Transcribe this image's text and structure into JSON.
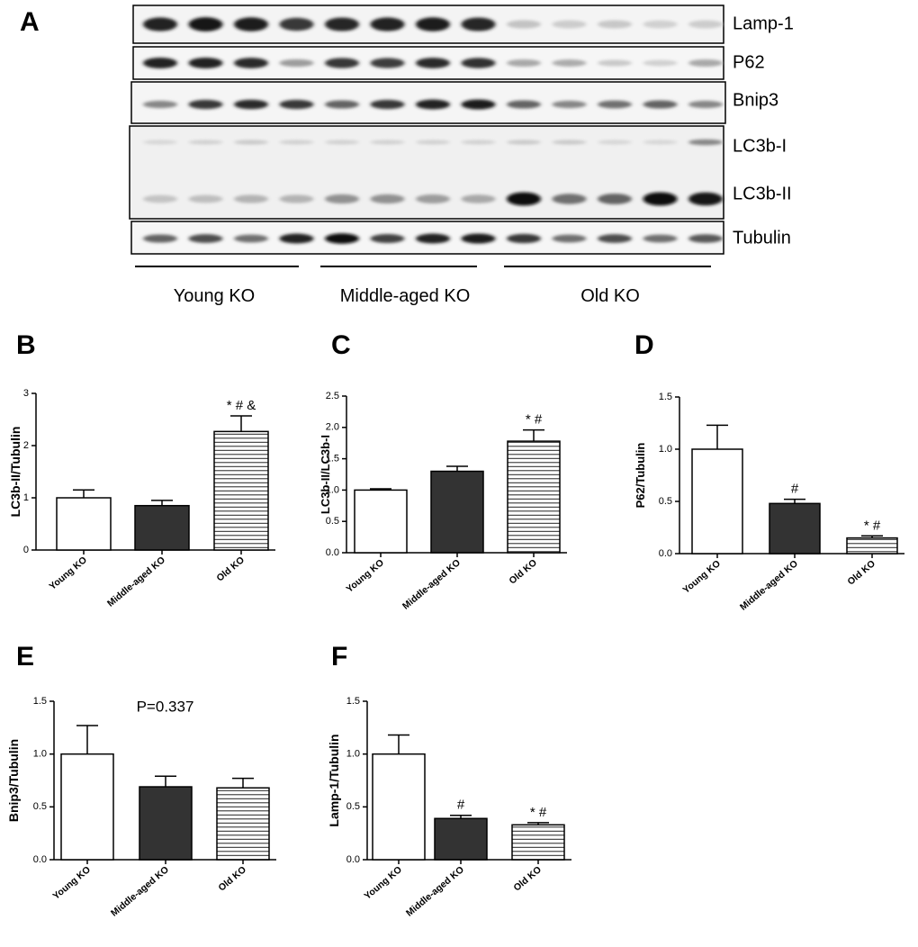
{
  "panel_labels": {
    "A": "A",
    "B": "B",
    "C": "C",
    "D": "D",
    "E": "E",
    "F": "F"
  },
  "blot": {
    "rows": [
      {
        "label": "Lamp-1",
        "intensity": [
          0.9,
          0.95,
          0.92,
          0.8,
          0.88,
          0.9,
          0.92,
          0.88,
          0.18,
          0.14,
          0.16,
          0.12,
          0.14
        ]
      },
      {
        "label": "P62",
        "intensity": [
          0.9,
          0.9,
          0.85,
          0.35,
          0.8,
          0.78,
          0.85,
          0.82,
          0.3,
          0.28,
          0.15,
          0.12,
          0.3
        ]
      },
      {
        "label": "Bnip3",
        "intensity": [
          0.45,
          0.8,
          0.85,
          0.8,
          0.6,
          0.8,
          0.9,
          0.92,
          0.6,
          0.45,
          0.55,
          0.6,
          0.45
        ]
      },
      {
        "label": "LC3b-I",
        "intensity": [
          0.1,
          0.12,
          0.15,
          0.12,
          0.12,
          0.12,
          0.12,
          0.12,
          0.15,
          0.15,
          0.1,
          0.1,
          0.45
        ]
      },
      {
        "label": "LC3b-II",
        "intensity": [
          0.18,
          0.2,
          0.25,
          0.25,
          0.4,
          0.4,
          0.35,
          0.3,
          0.98,
          0.55,
          0.6,
          0.98,
          0.95
        ]
      },
      {
        "label": "Tubulin",
        "intensity": [
          0.6,
          0.7,
          0.55,
          0.9,
          0.98,
          0.75,
          0.9,
          0.92,
          0.8,
          0.55,
          0.7,
          0.55,
          0.65
        ]
      }
    ],
    "groups": [
      "Young KO",
      "Middle-aged KO",
      "Old KO"
    ]
  },
  "chart_data": [
    {
      "id": "B",
      "type": "bar",
      "categories": [
        "Young KO",
        "Middle-aged KO",
        "Old KO"
      ],
      "values": [
        1.0,
        0.85,
        2.27
      ],
      "errors": [
        0.15,
        0.1,
        0.3
      ],
      "annotations": [
        "",
        "",
        "* # &"
      ],
      "ylabel": "LC3b-II/Tubulin",
      "ylim": [
        0,
        3
      ],
      "yticks": [
        "0",
        "1",
        "2",
        "3"
      ],
      "bar_styles": [
        "open",
        "filled",
        "hatched"
      ]
    },
    {
      "id": "C",
      "type": "bar",
      "categories": [
        "Young KO",
        "Middle-aged KO",
        "Old KO"
      ],
      "values": [
        1.0,
        1.3,
        1.78
      ],
      "errors": [
        0.02,
        0.08,
        0.18
      ],
      "annotations": [
        "",
        "",
        "* #"
      ],
      "ylabel": "LC3b-II/LC3b-I",
      "ylim": [
        0,
        2.5
      ],
      "yticks": [
        "0.0",
        "0.5",
        "1.0",
        "1.5",
        "2.0",
        "2.5"
      ],
      "bar_styles": [
        "open",
        "filled",
        "hatched"
      ]
    },
    {
      "id": "D",
      "type": "bar",
      "categories": [
        "Young KO",
        "Middle-aged KO",
        "Old KO"
      ],
      "values": [
        1.0,
        0.48,
        0.15
      ],
      "errors": [
        0.23,
        0.04,
        0.02
      ],
      "annotations": [
        "",
        "#",
        "* #"
      ],
      "ylabel": "P62/Tubulin",
      "ylim": [
        0,
        1.5
      ],
      "yticks": [
        "0.0",
        "0.5",
        "1.0",
        "1.5"
      ],
      "bar_styles": [
        "open",
        "filled",
        "hatched"
      ]
    },
    {
      "id": "E",
      "type": "bar",
      "categories": [
        "Young KO",
        "Middle-aged KO",
        "Old KO"
      ],
      "values": [
        1.0,
        0.69,
        0.68
      ],
      "errors": [
        0.27,
        0.1,
        0.09
      ],
      "annotations": [
        "",
        "",
        ""
      ],
      "note": "P=0.337",
      "ylabel": "Bnip3/Tubulin",
      "ylim": [
        0,
        1.5
      ],
      "yticks": [
        "0.0",
        "0.5",
        "1.0",
        "1.5"
      ],
      "bar_styles": [
        "open",
        "filled",
        "hatched"
      ]
    },
    {
      "id": "F",
      "type": "bar",
      "categories": [
        "Young KO",
        "Middle-aged KO",
        "Old KO"
      ],
      "values": [
        1.0,
        0.39,
        0.33
      ],
      "errors": [
        0.18,
        0.03,
        0.02
      ],
      "annotations": [
        "",
        "#",
        "* #"
      ],
      "ylabel": "Lamp-1/Tubulin",
      "ylim": [
        0,
        1.5
      ],
      "yticks": [
        "0.0",
        "0.5",
        "1.0",
        "1.5"
      ],
      "bar_styles": [
        "open",
        "filled",
        "hatched"
      ]
    }
  ]
}
